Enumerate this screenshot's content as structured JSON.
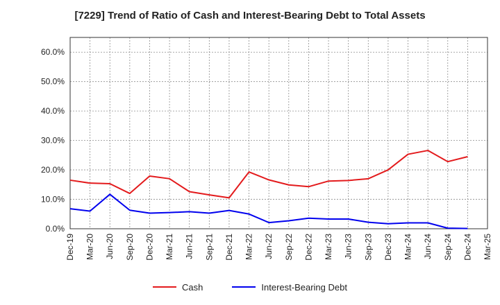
{
  "chart_data": {
    "type": "line",
    "title": "[7229]  Trend of Ratio of Cash and Interest-Bearing Debt to Total Assets",
    "xlabel": "",
    "ylabel": "",
    "categories": [
      "Dec-19",
      "Mar-20",
      "Jun-20",
      "Sep-20",
      "Dec-20",
      "Mar-21",
      "Jun-21",
      "Sep-21",
      "Dec-21",
      "Mar-22",
      "Jun-22",
      "Sep-22",
      "Dec-22",
      "Mar-23",
      "Jun-23",
      "Sep-23",
      "Dec-23",
      "Mar-24",
      "Jun-24",
      "Sep-24",
      "Dec-24",
      "Mar-25"
    ],
    "ylim": [
      0,
      65
    ],
    "yticks": [
      0,
      10,
      20,
      30,
      40,
      50,
      60
    ],
    "ytick_labels": [
      "0.0%",
      "10.0%",
      "20.0%",
      "30.0%",
      "40.0%",
      "50.0%",
      "60.0%"
    ],
    "grid": true,
    "legend_position": "bottom",
    "series": [
      {
        "name": "Cash",
        "color": "#e31a1c",
        "values": [
          16.5,
          15.5,
          15.3,
          12.0,
          17.9,
          17.0,
          12.6,
          11.5,
          10.5,
          19.3,
          16.6,
          14.9,
          14.3,
          16.2,
          16.4,
          17.0,
          20.0,
          25.3,
          26.6,
          22.8,
          24.5,
          null
        ]
      },
      {
        "name": "Interest-Bearing Debt",
        "color": "#0000ee",
        "values": [
          6.8,
          6.0,
          11.7,
          6.3,
          5.3,
          5.5,
          5.8,
          5.3,
          6.2,
          5.0,
          2.1,
          2.7,
          3.6,
          3.3,
          3.3,
          2.2,
          1.7,
          2.0,
          2.0,
          0.2,
          0.1,
          null
        ]
      }
    ]
  }
}
